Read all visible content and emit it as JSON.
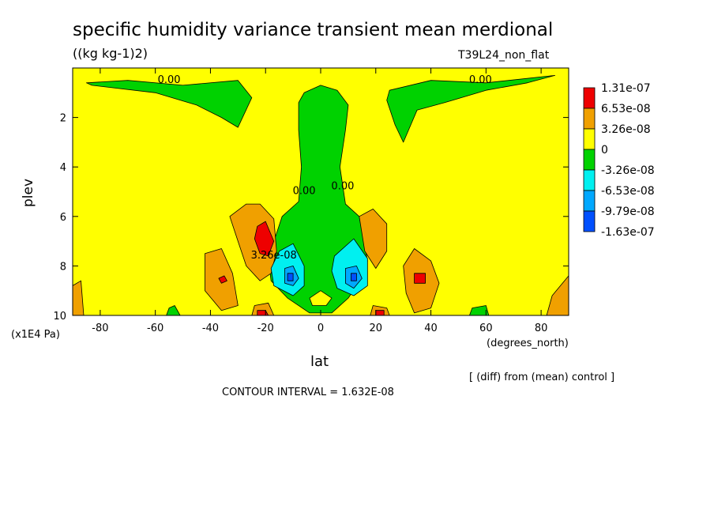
{
  "title": "specific humidity variance transient mean merdional",
  "units": "((kg kg-1)2)",
  "run_name": "T39L24_non_flat",
  "y_axis_units": "(x1E4 Pa)",
  "x_axis_units": "(degrees_north)",
  "diff_note": "[ (diff) from (mean) control ]",
  "contour_interval": "CONTOUR INTERVAL = 1.632E-08",
  "colors": {
    "red": "#ee0000",
    "orange": "#f0a000",
    "yellow": "#ffff00",
    "green": "#00d200",
    "cyan": "#00f0f0",
    "lightblue": "#00a8ff",
    "blue": "#0050ff"
  },
  "chart_data": {
    "type": "heatmap",
    "title": "specific humidity variance transient mean merdional",
    "xlabel": "lat",
    "ylabel": "plev",
    "xlim": [
      -90,
      90
    ],
    "ylim": [
      10,
      0
    ],
    "x_ticks": [
      -80,
      -60,
      -40,
      -20,
      0,
      20,
      40,
      60,
      80
    ],
    "y_ticks": [
      2,
      4,
      6,
      8,
      10
    ],
    "colorbar": {
      "labels": [
        "1.31e-07",
        "6.53e-08",
        "3.26e-08",
        "0",
        "-3.26e-08",
        "-6.53e-08",
        "-9.79e-08",
        "-1.63e-07"
      ],
      "colors": [
        "#ee0000",
        "#f0a000",
        "#ffff00",
        "#00d200",
        "#00f0f0",
        "#00a8ff",
        "#0050ff"
      ]
    },
    "contour_labels": [
      {
        "text": "0.00",
        "lat": -55,
        "plev": 0.6
      },
      {
        "text": "0.00",
        "lat": 58,
        "plev": 0.6
      },
      {
        "text": "0.00",
        "lat": -6,
        "plev": 5.1
      },
      {
        "text": "0.00",
        "lat": 8,
        "plev": 4.9
      },
      {
        "text": "3.26e-08",
        "lat": -17,
        "plev": 7.7
      }
    ],
    "regions": [
      {
        "level": "green",
        "note": "upper tropospheric tongue and polar-top lobes",
        "points": [
          [
            -85,
            0.6
          ],
          [
            -70,
            0.5
          ],
          [
            -50,
            0.7
          ],
          [
            -30,
            0.5
          ],
          [
            -25,
            1.2
          ],
          [
            -30,
            2.4
          ],
          [
            -36,
            2.0
          ],
          [
            -45,
            1.5
          ],
          [
            -60,
            1.0
          ],
          [
            -83,
            0.7
          ]
        ]
      },
      {
        "level": "green",
        "points": [
          [
            25,
            0.9
          ],
          [
            40,
            0.5
          ],
          [
            60,
            0.6
          ],
          [
            85,
            0.3
          ],
          [
            75,
            0.6
          ],
          [
            60,
            0.9
          ],
          [
            45,
            1.4
          ],
          [
            35,
            1.7
          ],
          [
            30,
            3.0
          ],
          [
            27,
            2.3
          ],
          [
            24,
            1.3
          ]
        ]
      },
      {
        "level": "green",
        "points": [
          [
            -6,
            1.0
          ],
          [
            0,
            0.7
          ],
          [
            6,
            0.9
          ],
          [
            10,
            1.5
          ],
          [
            9,
            2.5
          ],
          [
            7,
            4.0
          ],
          [
            9,
            5.5
          ],
          [
            14,
            6.0
          ],
          [
            17,
            7.8
          ],
          [
            15,
            8.5
          ],
          [
            10,
            9.3
          ],
          [
            4,
            9.9
          ],
          [
            -4,
            9.9
          ],
          [
            -12,
            9.3
          ],
          [
            -18,
            8.6
          ],
          [
            -19,
            7.7
          ],
          [
            -14,
            6.0
          ],
          [
            -8,
            5.4
          ],
          [
            -7,
            4.0
          ],
          [
            -8,
            2.5
          ],
          [
            -8,
            1.4
          ]
        ]
      },
      {
        "level": "orange",
        "points": [
          [
            -33,
            6.0
          ],
          [
            -27,
            5.5
          ],
          [
            -22,
            5.5
          ],
          [
            -17,
            6.1
          ],
          [
            -16,
            7.4
          ],
          [
            -18,
            8.3
          ],
          [
            -22,
            8.6
          ],
          [
            -27,
            8.0
          ],
          [
            -30,
            7.0
          ]
        ]
      },
      {
        "level": "red",
        "points": [
          [
            -23,
            6.4
          ],
          [
            -20,
            6.2
          ],
          [
            -17,
            7.0
          ],
          [
            -19,
            7.6
          ],
          [
            -22,
            7.5
          ],
          [
            -24,
            6.9
          ]
        ]
      },
      {
        "level": "orange",
        "points": [
          [
            -42,
            7.5
          ],
          [
            -36,
            7.3
          ],
          [
            -32,
            8.3
          ],
          [
            -30,
            9.6
          ],
          [
            -36,
            9.8
          ],
          [
            -42,
            9.0
          ]
        ]
      },
      {
        "level": "red",
        "points": [
          [
            -37,
            8.5
          ],
          [
            -35,
            8.4
          ],
          [
            -34,
            8.6
          ],
          [
            -36,
            8.7
          ]
        ]
      },
      {
        "level": "orange",
        "points": [
          [
            14,
            6.0
          ],
          [
            19,
            5.7
          ],
          [
            24,
            6.3
          ],
          [
            24,
            7.4
          ],
          [
            20,
            8.1
          ],
          [
            16,
            7.4
          ]
        ]
      },
      {
        "level": "orange",
        "points": [
          [
            30,
            8.0
          ],
          [
            34,
            7.3
          ],
          [
            40,
            7.8
          ],
          [
            43,
            8.7
          ],
          [
            40,
            9.7
          ],
          [
            34,
            9.9
          ],
          [
            31,
            9.1
          ]
        ]
      },
      {
        "level": "red",
        "points": [
          [
            34,
            8.3
          ],
          [
            38,
            8.3
          ],
          [
            38,
            8.7
          ],
          [
            34,
            8.7
          ]
        ]
      },
      {
        "level": "orange",
        "points": [
          [
            -90,
            8.8
          ],
          [
            -87,
            8.6
          ],
          [
            -86,
            10
          ],
          [
            -90,
            10
          ]
        ]
      },
      {
        "level": "orange",
        "points": [
          [
            84,
            9.2
          ],
          [
            90,
            8.4
          ],
          [
            90,
            10
          ],
          [
            82,
            10
          ]
        ]
      },
      {
        "level": "cyan",
        "points": [
          [
            -15,
            7.4
          ],
          [
            -10,
            7.1
          ],
          [
            -6,
            8.0
          ],
          [
            -6,
            8.8
          ],
          [
            -10,
            9.2
          ],
          [
            -17,
            8.8
          ],
          [
            -18,
            8.1
          ]
        ]
      },
      {
        "level": "lightblue",
        "points": [
          [
            -13,
            8.1
          ],
          [
            -10,
            8.0
          ],
          [
            -8,
            8.5
          ],
          [
            -10,
            8.8
          ],
          [
            -13,
            8.7
          ]
        ]
      },
      {
        "level": "blue",
        "points": [
          [
            -12,
            8.3
          ],
          [
            -10,
            8.3
          ],
          [
            -10,
            8.6
          ],
          [
            -12,
            8.6
          ]
        ]
      },
      {
        "level": "cyan",
        "points": [
          [
            5,
            7.6
          ],
          [
            12,
            6.9
          ],
          [
            17,
            7.7
          ],
          [
            17,
            8.8
          ],
          [
            12,
            9.2
          ],
          [
            6,
            8.9
          ],
          [
            4,
            8.2
          ]
        ]
      },
      {
        "level": "lightblue",
        "points": [
          [
            9,
            8.1
          ],
          [
            13,
            8.0
          ],
          [
            15,
            8.5
          ],
          [
            12,
            8.9
          ],
          [
            9,
            8.7
          ]
        ]
      },
      {
        "level": "blue",
        "points": [
          [
            11,
            8.3
          ],
          [
            13,
            8.3
          ],
          [
            13,
            8.6
          ],
          [
            11,
            8.6
          ]
        ]
      },
      {
        "level": "yellow",
        "points": [
          [
            -4,
            9.3
          ],
          [
            0,
            9.0
          ],
          [
            4,
            9.3
          ],
          [
            2,
            9.6
          ],
          [
            -3,
            9.6
          ]
        ]
      },
      {
        "level": "orange",
        "points": [
          [
            -24,
            9.6
          ],
          [
            -19,
            9.5
          ],
          [
            -17,
            10
          ],
          [
            -25,
            10
          ]
        ]
      },
      {
        "level": "red",
        "points": [
          [
            -23,
            9.8
          ],
          [
            -20,
            9.8
          ],
          [
            -19,
            10
          ],
          [
            -23,
            10
          ]
        ]
      },
      {
        "level": "orange",
        "points": [
          [
            19,
            9.6
          ],
          [
            24,
            9.7
          ],
          [
            25,
            10
          ],
          [
            18,
            10
          ]
        ]
      },
      {
        "level": "red",
        "points": [
          [
            20,
            9.8
          ],
          [
            23,
            9.8
          ],
          [
            23,
            10
          ],
          [
            20,
            10
          ]
        ]
      },
      {
        "level": "green",
        "points": [
          [
            -55,
            9.7
          ],
          [
            -53,
            9.6
          ],
          [
            -51,
            10
          ],
          [
            -56,
            10
          ]
        ]
      },
      {
        "level": "green",
        "points": [
          [
            55,
            9.7
          ],
          [
            60,
            9.6
          ],
          [
            61,
            10
          ],
          [
            54,
            10
          ]
        ]
      }
    ]
  }
}
